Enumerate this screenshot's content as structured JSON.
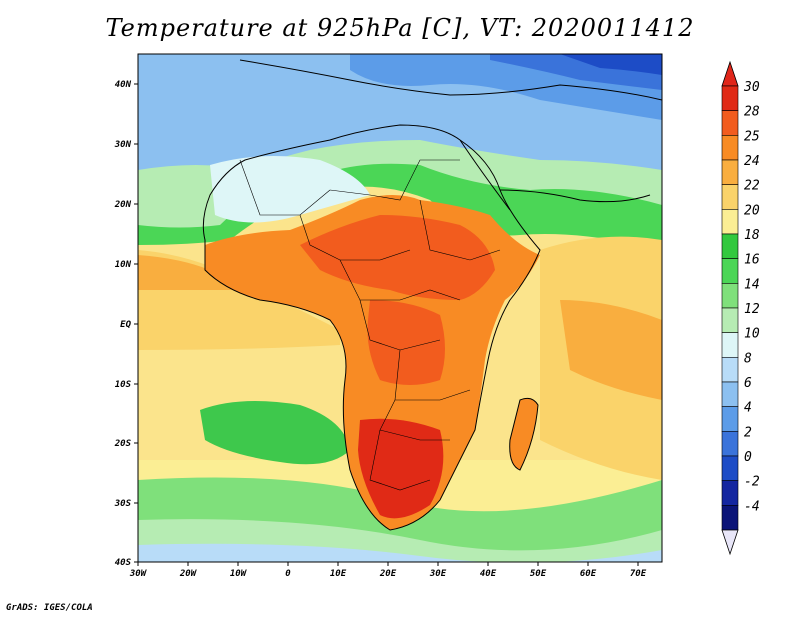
{
  "title": "Temperature at 925hPa [C], VT: 2020011412",
  "credit": "GrADS: IGES/COLA",
  "map": {
    "variable": "Temperature at 925hPa",
    "units": "C",
    "valid_time": "2020011412",
    "lon_range": [
      -30,
      75
    ],
    "lat_range": [
      -40,
      45
    ],
    "lon_ticks": [
      "30W",
      "20W",
      "10W",
      "0",
      "10E",
      "20E",
      "30E",
      "40E",
      "50E",
      "60E",
      "70E"
    ],
    "lat_ticks": [
      "40N",
      "30N",
      "20N",
      "10N",
      "EQ",
      "10S",
      "20S",
      "30S",
      "40S"
    ]
  },
  "colorbar": {
    "labels": [
      "30",
      "28",
      "25",
      "24",
      "22",
      "20",
      "18",
      "16",
      "14",
      "12",
      "10",
      "8",
      "6",
      "4",
      "2",
      "0",
      "-2",
      "-4"
    ],
    "colors": [
      "#e02a16",
      "#f25c1e",
      "#f88b24",
      "#f9ae3f",
      "#fad36a",
      "#fbee94",
      "#32c83e",
      "#4bd656",
      "#7fe07b",
      "#b6ecb3",
      "#def6f7",
      "#b8dcf8",
      "#8cc0f0",
      "#5c9ce8",
      "#3a73da",
      "#1d4cc6",
      "#1426a0",
      "#0b1478"
    ],
    "top_color": "#e0261a",
    "bottom_color": "#e8e6f8"
  },
  "colors": {
    "ocean_green": "#3ec84c",
    "ocean_yellow": "#fbe48c",
    "north_blue": "#8cc0f0",
    "sahara_pale": "#def6f7",
    "africa_orange": "#f88b24",
    "africa_red": "#e02a16",
    "border": "#000000"
  }
}
